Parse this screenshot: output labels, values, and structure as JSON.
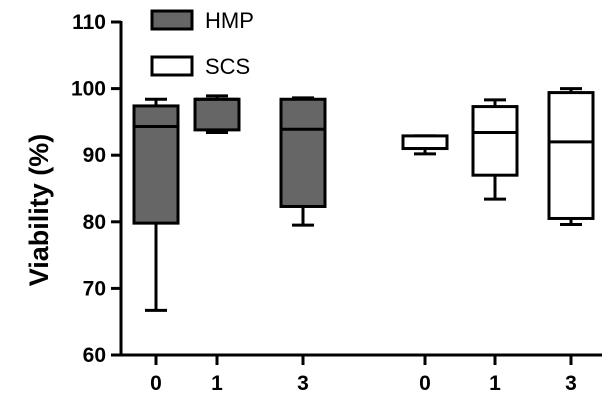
{
  "chart_data": {
    "type": "box",
    "ylabel": "Viability (%)",
    "xlabel": "",
    "ylim": [
      60,
      110
    ],
    "yticks": [
      60,
      70,
      80,
      90,
      100,
      110
    ],
    "categories": [
      "0",
      "1",
      "3"
    ],
    "legend": {
      "placement": "top-left",
      "entries": [
        "HMP",
        "SCS"
      ]
    },
    "grid": false,
    "series": [
      {
        "name": "HMP",
        "color": "#666666",
        "boxes": [
          {
            "category": "0",
            "min": 66.7,
            "q1": 79.8,
            "median": 94.3,
            "q3": 97.4,
            "max": 98.4
          },
          {
            "category": "1",
            "min": 93.4,
            "q1": 93.8,
            "median": 98.4,
            "q3": 98.4,
            "max": 98.9
          },
          {
            "category": "3",
            "min": 79.5,
            "q1": 82.3,
            "median": 93.9,
            "q3": 98.4,
            "max": 98.6
          }
        ]
      },
      {
        "name": "SCS",
        "color": "#ffffff",
        "boxes": [
          {
            "category": "0",
            "min": 90.2,
            "q1": 91.0,
            "median": 91.0,
            "q3": 92.9,
            "max": 92.9
          },
          {
            "category": "1",
            "min": 83.4,
            "q1": 87.0,
            "median": 93.4,
            "q3": 97.3,
            "max": 98.3
          },
          {
            "category": "3",
            "min": 79.6,
            "q1": 80.5,
            "median": 92.0,
            "q3": 99.4,
            "max": 100.0
          }
        ]
      }
    ]
  }
}
